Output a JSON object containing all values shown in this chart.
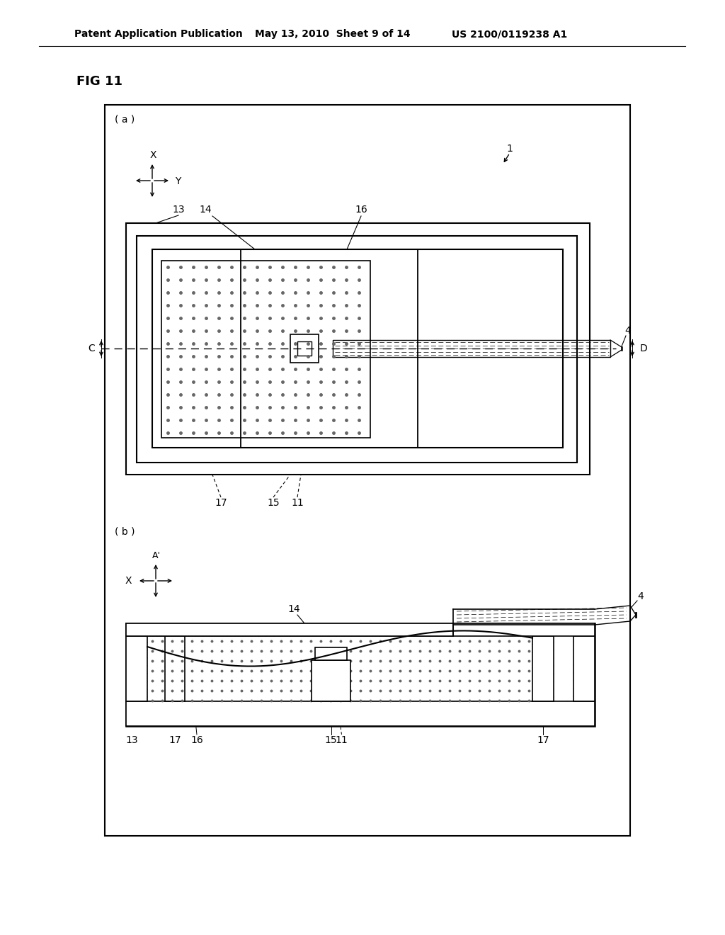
{
  "bg": "#ffffff",
  "lc": "#000000",
  "header_left": "Patent Application Publication",
  "header_mid": "May 13, 2010  Sheet 9 of 14",
  "header_right": "US 2100/0119238 A1",
  "fig_label": "FIG 11"
}
